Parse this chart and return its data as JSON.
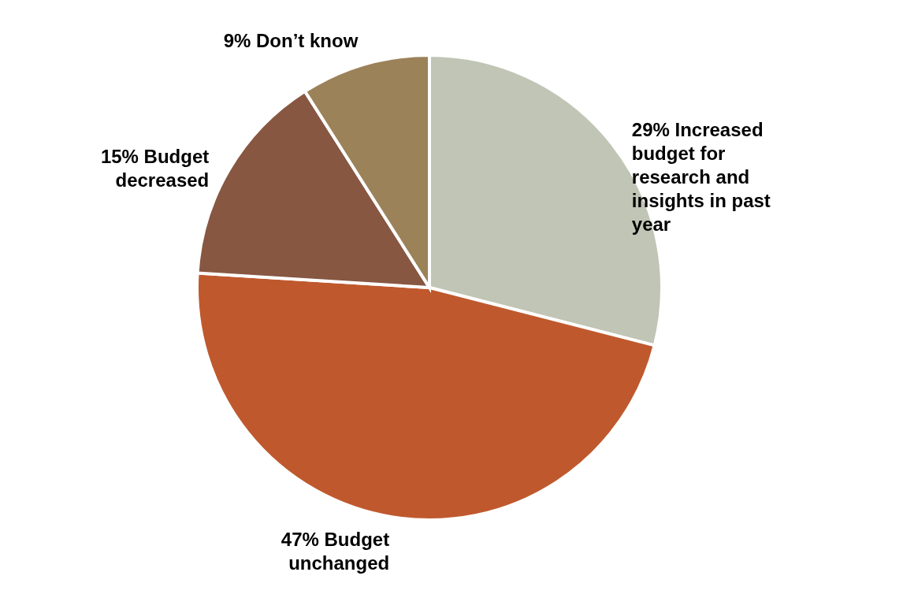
{
  "chart_data": {
    "type": "pie",
    "categories": [
      "Increased budget for research and insights in past year",
      "Budget unchanged",
      "Budget decreased",
      "Don’t know"
    ],
    "values": [
      29,
      47,
      15,
      9
    ],
    "value_labels": [
      "29%",
      "47%",
      "15%",
      "9%"
    ],
    "colors": [
      "#c0c5b5",
      "#bf592d",
      "#875742",
      "#9c8259"
    ]
  }
}
